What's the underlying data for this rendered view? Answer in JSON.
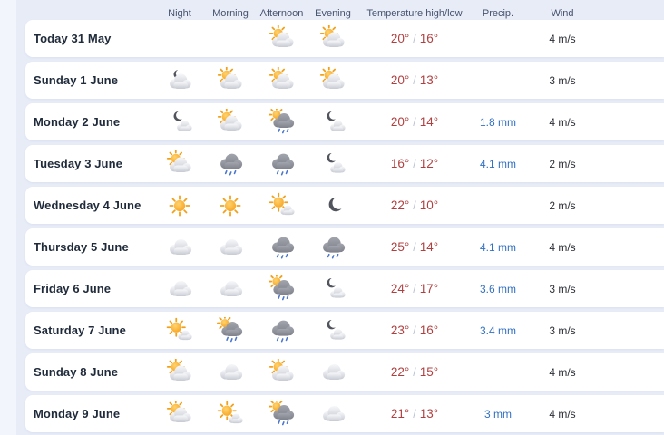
{
  "header": {
    "night": "Night",
    "morning": "Morning",
    "afternoon": "Afternoon",
    "evening": "Evening",
    "temperature": "Temperature high/low",
    "precip": "Precip.",
    "wind": "Wind"
  },
  "rows": [
    {
      "day": "Today 31 May",
      "night": "none",
      "morning": "none",
      "afternoon": "partlycloudy-day",
      "evening": "partlycloudy-day",
      "high": "20°",
      "low": "16°",
      "precip": "",
      "wind": "4 m/s"
    },
    {
      "day": "Sunday 1 June",
      "night": "partlycloudy-night",
      "morning": "partlycloudy-day",
      "afternoon": "partlycloudy-day",
      "evening": "partlycloudy-day",
      "high": "20°",
      "low": "13°",
      "precip": "",
      "wind": "3 m/s"
    },
    {
      "day": "Monday 2 June",
      "night": "fair-night",
      "morning": "partlycloudy-day",
      "afternoon": "lightrainshowers-day",
      "evening": "fair-night",
      "high": "20°",
      "low": "14°",
      "precip": "1.8 mm",
      "wind": "4 m/s"
    },
    {
      "day": "Tuesday 3 June",
      "night": "partlycloudy-day",
      "morning": "lightrain",
      "afternoon": "lightrain",
      "evening": "fair-night",
      "high": "16°",
      "low": "12°",
      "precip": "4.1 mm",
      "wind": "2 m/s"
    },
    {
      "day": "Wednesday 4 June",
      "night": "clearsky-day",
      "morning": "clearsky-day",
      "afternoon": "fair-day",
      "evening": "clearsky-night",
      "high": "22°",
      "low": "10°",
      "precip": "",
      "wind": "2 m/s"
    },
    {
      "day": "Thursday 5 June",
      "night": "cloudy",
      "morning": "cloudy",
      "afternoon": "lightrain",
      "evening": "lightrain",
      "high": "25°",
      "low": "14°",
      "precip": "4.1 mm",
      "wind": "4 m/s"
    },
    {
      "day": "Friday 6 June",
      "night": "cloudy",
      "morning": "cloudy",
      "afternoon": "lightrainshowers-day",
      "evening": "fair-night",
      "high": "24°",
      "low": "17°",
      "precip": "3.6 mm",
      "wind": "3 m/s"
    },
    {
      "day": "Saturday 7 June",
      "night": "fair-day",
      "morning": "lightrainshowers-day",
      "afternoon": "lightrain",
      "evening": "fair-night",
      "high": "23°",
      "low": "16°",
      "precip": "3.4 mm",
      "wind": "3 m/s"
    },
    {
      "day": "Sunday 8 June",
      "night": "partlycloudy-day",
      "morning": "cloudy",
      "afternoon": "partlycloudy-day",
      "evening": "cloudy",
      "high": "22°",
      "low": "15°",
      "precip": "",
      "wind": "4 m/s"
    },
    {
      "day": "Monday 9 June",
      "night": "partlycloudy-day",
      "morning": "fair-day",
      "afternoon": "lightrainshowers-day",
      "evening": "cloudy",
      "high": "21°",
      "low": "13°",
      "precip": "3 mm",
      "wind": "4 m/s"
    }
  ],
  "colors": {
    "temperature_text": "#b04040",
    "precip_text": "#3270c2",
    "temp_separator": "#b8c2d4",
    "page_background": "#e7ecf7",
    "card_background": "#ffffff",
    "sun": "#f59b12",
    "rain_drop": "#4b77cf"
  }
}
